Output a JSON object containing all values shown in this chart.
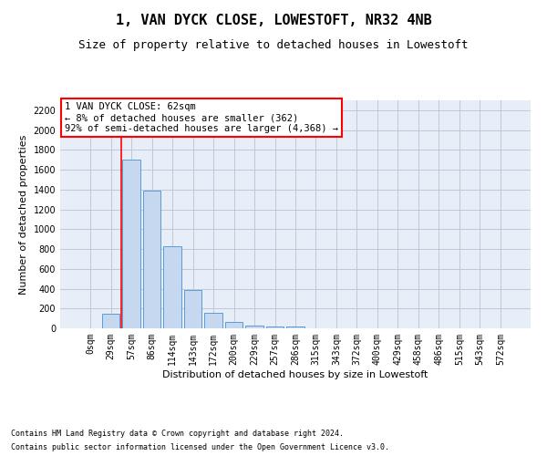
{
  "title": "1, VAN DYCK CLOSE, LOWESTOFT, NR32 4NB",
  "subtitle": "Size of property relative to detached houses in Lowestoft",
  "xlabel": "Distribution of detached houses by size in Lowestoft",
  "ylabel": "Number of detached properties",
  "bar_labels": [
    "0sqm",
    "29sqm",
    "57sqm",
    "86sqm",
    "114sqm",
    "143sqm",
    "172sqm",
    "200sqm",
    "229sqm",
    "257sqm",
    "286sqm",
    "315sqm",
    "343sqm",
    "372sqm",
    "400sqm",
    "429sqm",
    "458sqm",
    "486sqm",
    "515sqm",
    "543sqm",
    "572sqm"
  ],
  "bar_values": [
    0,
    150,
    1700,
    1390,
    830,
    390,
    160,
    60,
    28,
    22,
    22,
    0,
    0,
    0,
    0,
    0,
    0,
    0,
    0,
    0,
    0
  ],
  "bar_color": "#c5d8f0",
  "bar_edge_color": "#5b9bd5",
  "grid_color": "#c0c8d8",
  "background_color": "#e8eef8",
  "annotation_line1": "1 VAN DYCK CLOSE: 62sqm",
  "annotation_line2": "← 8% of detached houses are smaller (362)",
  "annotation_line3": "92% of semi-detached houses are larger (4,368) →",
  "red_line_x": 1.5,
  "ylim": [
    0,
    2300
  ],
  "yticks": [
    0,
    200,
    400,
    600,
    800,
    1000,
    1200,
    1400,
    1600,
    1800,
    2000,
    2200
  ],
  "footer_line1": "Contains HM Land Registry data © Crown copyright and database right 2024.",
  "footer_line2": "Contains public sector information licensed under the Open Government Licence v3.0.",
  "title_fontsize": 11,
  "subtitle_fontsize": 9,
  "annotation_fontsize": 7.5,
  "axis_label_fontsize": 8,
  "tick_fontsize": 7,
  "footer_fontsize": 6
}
